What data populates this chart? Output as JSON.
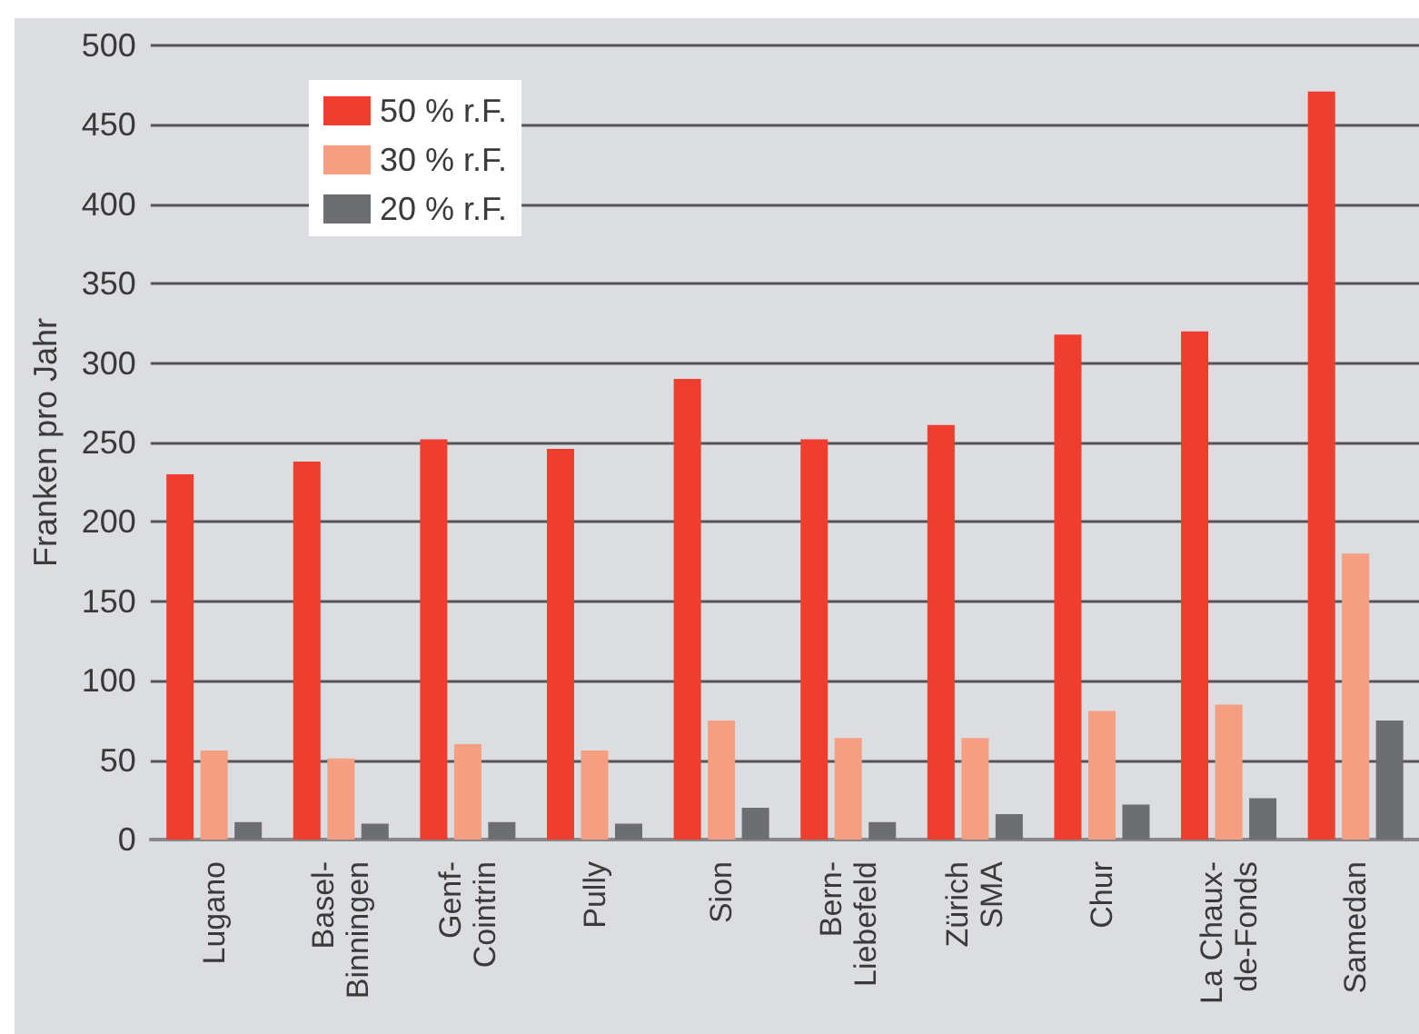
{
  "chart_data": {
    "type": "bar",
    "ylabel": "Franken pro Jahr",
    "categories": [
      "Lugano",
      "Basel-\nBinningen",
      "Genf-\nCointrin",
      "Pully",
      "Sion",
      "Bern-\nLiebefeld",
      "Zürich\nSMA",
      "Chur",
      "La Chaux-\nde-Fonds",
      "Samedan"
    ],
    "series": [
      {
        "name": "50 % r.F.",
        "color": "#ef3e2f",
        "values": [
          230,
          238,
          252,
          246,
          290,
          252,
          261,
          318,
          320,
          471
        ]
      },
      {
        "name": "30 % r.F.",
        "color": "#f59e82",
        "values": [
          56,
          51,
          60,
          56,
          75,
          64,
          64,
          81,
          85,
          180
        ]
      },
      {
        "name": "20 % r.F.",
        "color": "#6d6e71",
        "values": [
          11,
          10,
          11,
          10,
          20,
          11,
          16,
          22,
          26,
          75
        ]
      }
    ],
    "ylim": [
      0,
      500
    ],
    "yticks": [
      0,
      50,
      100,
      150,
      200,
      250,
      300,
      350,
      400,
      450,
      500
    ],
    "grid": "y",
    "legend": "top left"
  }
}
